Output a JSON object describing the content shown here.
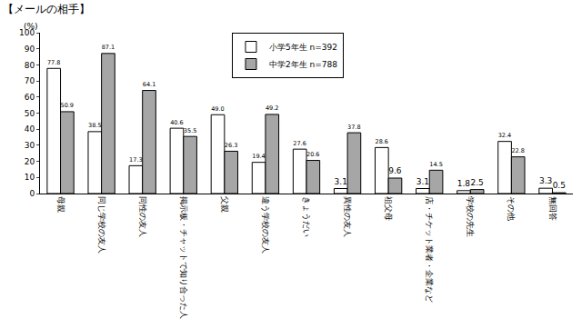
{
  "chart_data": {
    "type": "bar",
    "title": "【メールの相手】",
    "y_label": "(%)",
    "categories": [
      "母親",
      "同じ学校の友人",
      "同性の友人",
      "掲示板・チャットで知り合った人",
      "父親",
      "違う学校の友人",
      "きょうだい",
      "異性の友人",
      "祖父母",
      "店・チケット業者・企業など",
      "学校の先生",
      "その他",
      "無回答"
    ],
    "series": [
      {
        "name": "小学5年生 n=392",
        "color": "#ffffff",
        "values": [
          77.8,
          38.5,
          17.3,
          40.6,
          49.0,
          19.4,
          27.6,
          3.1,
          28.6,
          3.1,
          1.8,
          32.4,
          3.3
        ],
        "value_labels": [
          "77.8",
          "38.5",
          "17.3",
          "40.6",
          "49.0",
          "19.4",
          "27.6",
          "3.1",
          "28.6",
          "3.1",
          "1.8",
          "32.4",
          "3.3"
        ]
      },
      {
        "name": "中学2年生 n=788",
        "color": "#a6a6a6",
        "values": [
          50.9,
          87.1,
          64.1,
          35.5,
          26.3,
          49.2,
          20.6,
          37.8,
          9.6,
          14.5,
          2.5,
          22.8,
          0.5
        ],
        "value_labels": [
          "50.9",
          "87.1",
          "64.1",
          "35.5",
          "26.3",
          "49.2",
          "20.6",
          "37.8",
          "9.6",
          "14.5",
          "2.5",
          "22.8",
          "0.5"
        ]
      }
    ],
    "ylim": [
      0,
      100
    ],
    "yticks": [
      0,
      10,
      20,
      30,
      40,
      50,
      60,
      70,
      80,
      90,
      100
    ],
    "grid": false,
    "legend": "top",
    "data_labels": true
  }
}
